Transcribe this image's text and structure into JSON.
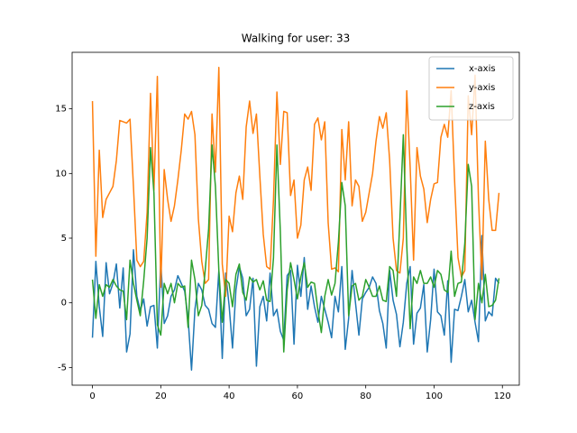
{
  "chart_data": {
    "type": "line",
    "title": "Walking for user: 33",
    "x": [
      0,
      1,
      2,
      3,
      4,
      5,
      6,
      7,
      8,
      9,
      10,
      11,
      12,
      13,
      14,
      15,
      16,
      17,
      18,
      19,
      20,
      21,
      22,
      23,
      24,
      25,
      26,
      27,
      28,
      29,
      30,
      31,
      32,
      33,
      34,
      35,
      36,
      37,
      38,
      39,
      40,
      41,
      42,
      43,
      44,
      45,
      46,
      47,
      48,
      49,
      50,
      51,
      52,
      53,
      54,
      55,
      56,
      57,
      58,
      59,
      60,
      61,
      62,
      63,
      64,
      65,
      66,
      67,
      68,
      69,
      70,
      71,
      72,
      73,
      74,
      75,
      76,
      77,
      78,
      79,
      80,
      81,
      82,
      83,
      84,
      85,
      86,
      87,
      88,
      89,
      90,
      91,
      92,
      93,
      94,
      95,
      96,
      97,
      98,
      99,
      100,
      101,
      102,
      103,
      104,
      105,
      106,
      107,
      108,
      109,
      110,
      111,
      112,
      113,
      114,
      115,
      116,
      117,
      118,
      119
    ],
    "series": [
      {
        "name": "x-axis",
        "color": "#1f77b4",
        "values": [
          -2.7,
          3.2,
          -0.3,
          -2.6,
          3.1,
          0.7,
          1.5,
          3,
          -0.4,
          2.7,
          -3.8,
          -2.4,
          4.1,
          0.5,
          -0.6,
          0.3,
          -1.8,
          -0.3,
          -0.2,
          -3.5,
          3.2,
          -1.6,
          -1,
          0.5,
          1,
          2.1,
          1.5,
          0.9,
          -1.2,
          -5.2,
          -0.5,
          1.5,
          1,
          -0.2,
          -0.5,
          -1.6,
          -1.9,
          2.5,
          -4.3,
          2.3,
          -0.2,
          -3.5,
          1,
          2.8,
          1.9,
          -1,
          -0.5,
          1.9,
          -4.9,
          -0.3,
          0.5,
          -1.4,
          2.3,
          -1,
          -0.5,
          -2.2,
          -2.9,
          2.1,
          2.5,
          -3.2,
          2.9,
          0.5,
          3.5,
          -0.5,
          1.3,
          -0.3,
          -1.5,
          0.5,
          -0.5,
          -1.5,
          -2.7,
          0.5,
          -0.7,
          2.8,
          -3.6,
          -1.2,
          2.5,
          0,
          -2.5,
          0.3,
          0.8,
          1.2,
          2,
          1.5,
          -0.6,
          -1.6,
          -3.5,
          2.5,
          0.2,
          -0.9,
          -3.4,
          -1.5,
          1.5,
          2.8,
          -3.2,
          -0.8,
          -0.4,
          1.4,
          -3.8,
          -1.3,
          2.6,
          -0.7,
          -1,
          -2.5,
          1.7,
          -4.6,
          -0.5,
          -0.6,
          0.5,
          1.8,
          -0.7,
          0.2,
          -1.5,
          -3,
          5.2,
          -1.4,
          -0.7,
          -1,
          1.9,
          1.5
        ]
      },
      {
        "name": "y-axis",
        "color": "#ff7f0e",
        "values": [
          15.6,
          3.6,
          11.8,
          6.6,
          8,
          8.5,
          9,
          11,
          14.1,
          14,
          13.9,
          14.2,
          9,
          3.3,
          2.8,
          3.2,
          7,
          16.2,
          8.7,
          17.5,
          1.2,
          10.3,
          8,
          6.3,
          7.5,
          9.5,
          11.8,
          14.6,
          14.2,
          14.8,
          13,
          6.5,
          3.2,
          1.5,
          1.8,
          14.6,
          10.1,
          18.2,
          3,
          0.5,
          6.7,
          5.5,
          8.5,
          9.8,
          8,
          13.6,
          15.6,
          13.1,
          14.6,
          9.8,
          5.3,
          2.8,
          2.6,
          8,
          16.3,
          10.7,
          14.8,
          14.7,
          8.3,
          9.5,
          5,
          6,
          9.5,
          10.5,
          8.7,
          13.8,
          14.3,
          12.6,
          14,
          6.2,
          2.6,
          2.7,
          2.4,
          13.4,
          9.5,
          14,
          7.5,
          9.5,
          9,
          6.3,
          7,
          8.5,
          10,
          12.5,
          14.4,
          13.5,
          14.7,
          11,
          5,
          2.5,
          2.3,
          5,
          16.4,
          10.5,
          3.3,
          12,
          9.8,
          8.8,
          6.2,
          8,
          9.2,
          9.3,
          12.8,
          13.8,
          12.8,
          16.4,
          9.5,
          3.5,
          2,
          2.5,
          16,
          13,
          17.6,
          8,
          1.8,
          12.5,
          8,
          5.6,
          5.6,
          8.5
        ]
      },
      {
        "name": "z-axis",
        "color": "#2ca02c",
        "values": [
          1.8,
          -1.2,
          1.4,
          0.5,
          1.4,
          1.2,
          1.8,
          1.3,
          1,
          0.9,
          -1.3,
          3.3,
          1.5,
          0.2,
          -1,
          1.7,
          5,
          12,
          8.5,
          -1.7,
          -2.5,
          1.5,
          0.7,
          1.5,
          0,
          1.5,
          1.2,
          1.3,
          -1.9,
          3.3,
          1.8,
          -1,
          -0.2,
          2.5,
          5.7,
          12.2,
          9,
          2.5,
          -1.5,
          1.8,
          1.5,
          -0.3,
          2.2,
          3,
          0.8,
          0.2,
          2,
          1.6,
          1.8,
          1,
          1.7,
          0.2,
          0.1,
          3.5,
          12.2,
          5.5,
          -3.8,
          1,
          3.1,
          1.8,
          0.3,
          2,
          3.1,
          1.2,
          1.6,
          1.5,
          -0.6,
          -2.3,
          0.5,
          1.8,
          0.6,
          1.5,
          4.7,
          9.3,
          7.5,
          -1,
          1.3,
          1.5,
          0.2,
          0.5,
          1.8,
          1.2,
          0.5,
          0.5,
          1.3,
          0.2,
          0.1,
          2.8,
          2.5,
          0.5,
          6.5,
          13,
          4.5,
          -2,
          2,
          1.5,
          2.5,
          1.5,
          1.5,
          2,
          1.2,
          2.5,
          2.2,
          1,
          0.8,
          4,
          0.5,
          1.5,
          1.6,
          4.6,
          10.7,
          9,
          -1.3,
          1.5,
          0,
          2.2,
          -0.3,
          -0.2,
          0.2,
          1.9
        ]
      }
    ],
    "xlim": [
      -5.95,
      124.95
    ],
    "xticks": [
      0,
      20,
      40,
      60,
      80,
      100,
      120
    ],
    "ylim": [
      -6.37,
      19.37
    ],
    "yticks": [
      -5,
      0,
      5,
      10,
      15
    ],
    "legend": "upper right"
  }
}
